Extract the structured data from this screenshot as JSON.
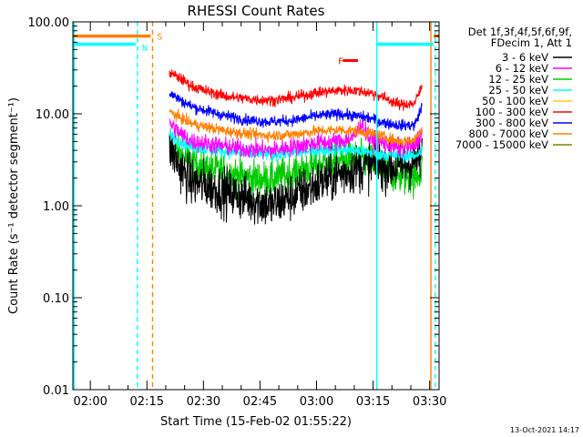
{
  "chart_data": {
    "type": "line",
    "title": "RHESSI Count Rates",
    "xlabel": "Start Time (15-Feb-02 01:55:22)",
    "ylabel": "Count Rate (s⁻¹ detector segment⁻¹)",
    "y_scale": "log",
    "ylim": [
      0.01,
      100
    ],
    "xlim": [
      "01:55:22",
      "03:32:30"
    ],
    "y_ticks": [
      "0.01",
      "0.10",
      "1.00",
      "10.00",
      "100.00"
    ],
    "x_ticks": [
      "02:00",
      "02:15",
      "02:30",
      "02:45",
      "03:00",
      "03:15",
      "03:30"
    ],
    "legend": {
      "position": "right",
      "header": [
        "Det 1f,3f,4f,5f,6f,9f,",
        "FDecim 1, Att 1"
      ],
      "entries": [
        {
          "label": "3 - 6 keV",
          "color": "#000000"
        },
        {
          "label": "6 - 12 keV",
          "color": "#ff00ff"
        },
        {
          "label": "12 - 25 keV",
          "color": "#00cc00"
        },
        {
          "label": "25 - 50 keV",
          "color": "#00ffff"
        },
        {
          "label": "50 - 100 keV",
          "color": "#ffcc00"
        },
        {
          "label": "100 - 300 keV",
          "color": "#ff0000"
        },
        {
          "label": "300 - 800 keV",
          "color": "#0000ff"
        },
        {
          "label": "800 - 7000 keV",
          "color": "#ff8000"
        },
        {
          "label": "7000 - 15000 keV",
          "color": "#808000"
        }
      ]
    },
    "series": [
      {
        "name": "3 - 6 keV",
        "color": "#000000",
        "jitter": 0.26,
        "x": [
          "02:21",
          "02:24",
          "02:27",
          "02:30",
          "02:36",
          "02:42",
          "02:48",
          "02:54",
          "03:00",
          "03:06",
          "03:10",
          "03:14",
          "03:18",
          "03:22",
          "03:26",
          "03:28"
        ],
        "y": [
          4.5,
          2.5,
          1.8,
          1.7,
          1.4,
          1.2,
          1.0,
          1.3,
          1.7,
          2.2,
          2.5,
          2.8,
          2.7,
          2.6,
          3.0,
          3.5
        ]
      },
      {
        "name": "6 - 12 keV",
        "color": "#ff00ff",
        "jitter": 0.1,
        "x": [
          "02:21",
          "02:24",
          "02:27",
          "02:30",
          "02:36",
          "02:42",
          "02:48",
          "02:54",
          "03:00",
          "03:06",
          "03:10",
          "03:12",
          "03:14",
          "03:18",
          "03:22",
          "03:26",
          "03:28"
        ],
        "y": [
          8.0,
          6.0,
          5.0,
          4.8,
          4.4,
          4.1,
          4.0,
          4.4,
          4.8,
          5.0,
          5.5,
          8.0,
          5.3,
          4.8,
          4.2,
          4.5,
          6.5
        ]
      },
      {
        "name": "12 - 25 keV",
        "color": "#00cc00",
        "jitter": 0.2,
        "x": [
          "02:21",
          "02:24",
          "02:27",
          "02:30",
          "02:36",
          "02:42",
          "02:48",
          "02:54",
          "03:00",
          "03:06",
          "03:10",
          "03:14",
          "03:18",
          "03:22",
          "03:26",
          "03:28"
        ],
        "y": [
          4.5,
          3.5,
          3.0,
          2.6,
          2.3,
          2.0,
          1.9,
          2.3,
          2.8,
          3.1,
          3.2,
          3.0,
          2.5,
          2.1,
          2.0,
          2.5
        ]
      },
      {
        "name": "25 - 50 keV",
        "color": "#00ffff",
        "jitter": 0.07,
        "x": [
          "02:21",
          "02:24",
          "02:27",
          "02:30",
          "02:36",
          "02:42",
          "02:48",
          "02:54",
          "03:00",
          "03:06",
          "03:10",
          "03:14",
          "03:18",
          "03:22",
          "03:26",
          "03:28"
        ],
        "y": [
          6.0,
          5.0,
          4.4,
          4.2,
          3.9,
          3.7,
          3.6,
          3.8,
          4.0,
          4.1,
          4.0,
          3.8,
          3.6,
          3.5,
          3.5,
          4.0
        ]
      },
      {
        "name": "100 - 300 keV",
        "color": "#ff0000",
        "jitter": 0.06,
        "x": [
          "02:21",
          "02:24",
          "02:27",
          "02:30",
          "02:36",
          "02:42",
          "02:48",
          "02:54",
          "03:00",
          "03:06",
          "03:10",
          "03:14",
          "03:18",
          "03:22",
          "03:26",
          "03:28"
        ],
        "y": [
          28,
          24,
          20,
          18,
          15.5,
          14.5,
          14,
          15,
          17,
          18,
          18,
          17,
          15,
          12.5,
          13,
          20
        ]
      },
      {
        "name": "300 - 800 keV",
        "color": "#0000ff",
        "jitter": 0.06,
        "x": [
          "02:21",
          "02:24",
          "02:27",
          "02:30",
          "02:36",
          "02:42",
          "02:48",
          "02:54",
          "03:00",
          "03:06",
          "03:10",
          "03:14",
          "03:18",
          "03:22",
          "03:26",
          "03:28"
        ],
        "y": [
          17,
          14,
          12,
          11,
          9.5,
          8.5,
          8.2,
          8.5,
          9.5,
          10,
          9.5,
          9,
          8,
          7.5,
          7.5,
          12
        ]
      },
      {
        "name": "800 - 7000 keV",
        "color": "#ff8000",
        "jitter": 0.06,
        "x": [
          "02:21",
          "02:24",
          "02:27",
          "02:30",
          "02:36",
          "02:42",
          "02:48",
          "02:54",
          "03:00",
          "03:06",
          "03:10",
          "03:14",
          "03:18",
          "03:22",
          "03:26",
          "03:28"
        ],
        "y": [
          10.5,
          9.0,
          7.8,
          7.3,
          6.5,
          6.0,
          5.8,
          6.0,
          6.5,
          6.7,
          6.5,
          6.2,
          5.6,
          5.0,
          5.2,
          7.0
        ]
      }
    ],
    "attenuator_bars": [
      {
        "color": "#ff8000",
        "x0": "01:55:22",
        "x1": "02:16",
        "y": 70
      },
      {
        "color": "#00ffff",
        "x0": "01:55:22",
        "x1": "02:12",
        "y": 57
      },
      {
        "color": "#00ffff",
        "x0": "03:16",
        "x1": "03:31",
        "y": 57
      },
      {
        "color": "#ff8000",
        "x0": "03:31",
        "x1": "03:32:30",
        "y": 70
      }
    ],
    "markers": [
      {
        "label": "S",
        "color": "#ff8000",
        "x": "02:17",
        "y": 70
      },
      {
        "label": "N",
        "color": "#00ffff",
        "x": "02:13",
        "y": 53
      },
      {
        "label": "F",
        "color": "#ff0000",
        "x": "03:05",
        "y": 38,
        "bar_x0": "03:07",
        "bar_x1": "03:11"
      }
    ],
    "vlines": [
      {
        "color": "#00ffff",
        "x": "01:55:40",
        "style": "solid"
      },
      {
        "color": "#00ffff",
        "x": "02:12:30",
        "style": "dashed"
      },
      {
        "color": "#ff8000",
        "x": "02:16:30",
        "style": "dashed"
      },
      {
        "color": "#00ffff",
        "x": "03:16",
        "style": "solid"
      },
      {
        "color": "#ff8000",
        "x": "03:30:20",
        "style": "solid"
      },
      {
        "color": "#00ffff",
        "x": "03:31:30",
        "style": "dashed"
      }
    ],
    "grid": false
  },
  "timestamp": "13-Oct-2021 14:17"
}
